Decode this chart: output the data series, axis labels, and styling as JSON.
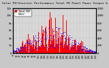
{
  "title": "Solar PV/Inverter Performance Total PV Panel Power Output & Solar Radiation",
  "bar_color": "#ff0000",
  "dot_color": "#0000ff",
  "background_color": "#c8c8c8",
  "plot_bg_color": "#d8d8d8",
  "grid_color": "#aaaaaa",
  "n_points": 365,
  "y_max_bars": 12000,
  "y_max_dots": 1200,
  "title_fontsize": 3.2,
  "axis_fontsize": 2.8,
  "legend_fontsize": 2.8,
  "peak_day": 172,
  "sigma": 85
}
